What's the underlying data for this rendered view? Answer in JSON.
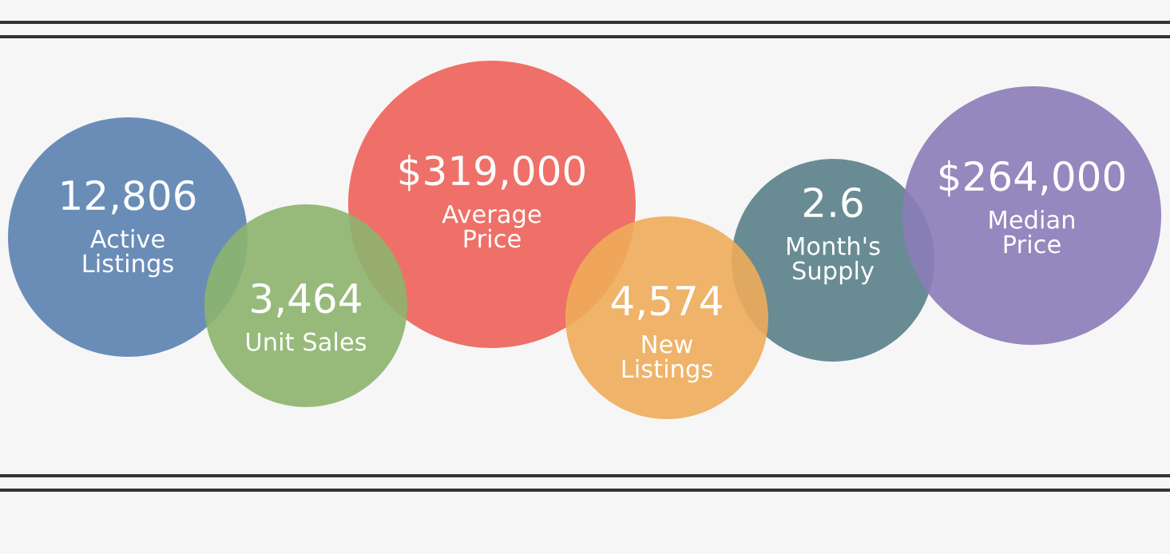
{
  "chart_data": {
    "type": "other",
    "categories": [
      "Active\nListings",
      "Unit Sales",
      "Average\nPrice",
      "New\nListings",
      "Month's\nSupply",
      "Median\nPrice"
    ],
    "values": [
      12806,
      3464,
      319000,
      4574,
      2.6,
      264000
    ],
    "value_labels": [
      "12,806",
      "3,464",
      "$319,000",
      "4,574",
      "2.6",
      "$264,000"
    ],
    "colors": [
      "#5b82b0",
      "#8db46e",
      "#ee6259",
      "#eeac5a",
      "#5a8089",
      "#8a7cb8"
    ]
  }
}
